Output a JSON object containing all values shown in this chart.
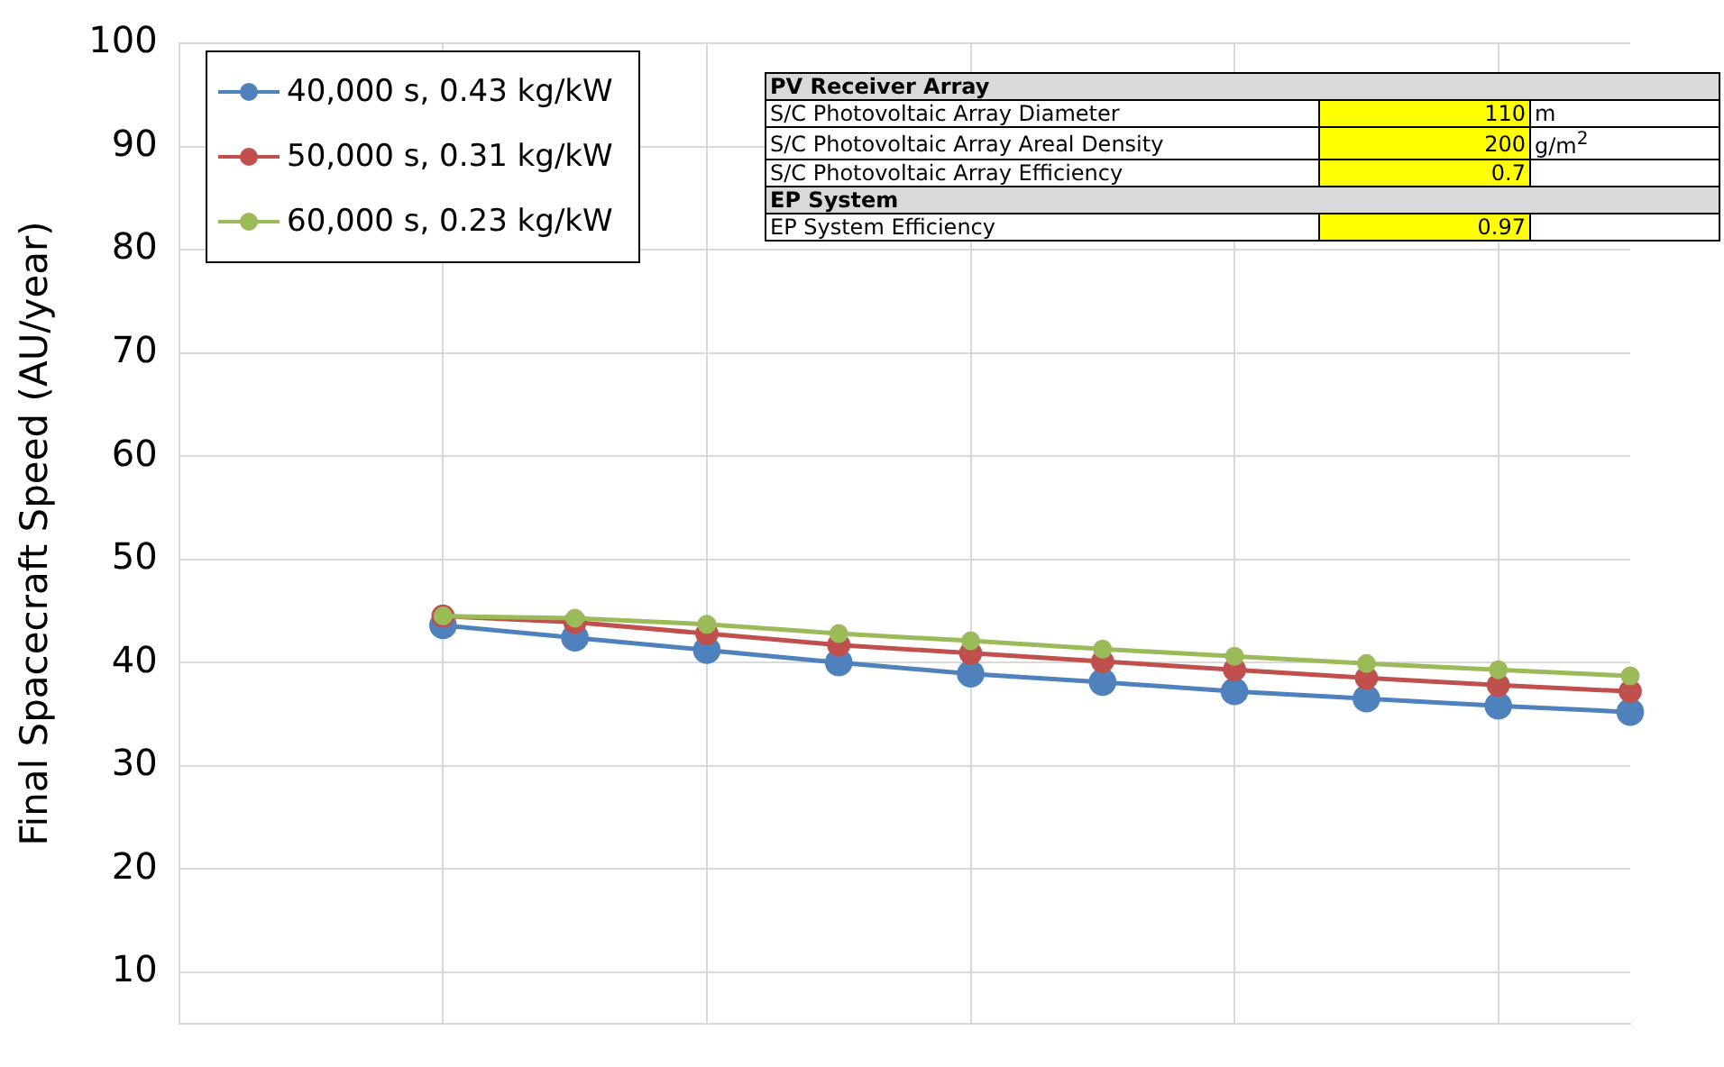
{
  "chart_data": {
    "type": "line",
    "ylabel": "Final Spacecraft Speed (AU/year)",
    "categories": [
      null,
      null,
      null,
      null,
      null,
      null,
      null,
      null,
      null,
      null,
      null,
      null
    ],
    "series": [
      {
        "name": "40,000 s, 0.43 kg/kW",
        "color": "#4f81bd",
        "values": [
          null,
          null,
          43.6,
          42.4,
          41.2,
          40.0,
          38.9,
          38.1,
          37.2,
          36.5,
          35.8,
          35.2
        ]
      },
      {
        "name": "50,000 s, 0.31 kg/kW",
        "color": "#c0504d",
        "values": [
          null,
          null,
          44.5,
          43.9,
          42.8,
          41.7,
          40.9,
          40.1,
          39.3,
          38.5,
          37.8,
          37.2
        ]
      },
      {
        "name": "60,000 s, 0.23 kg/kW",
        "color": "#9bbb59",
        "values": [
          null,
          null,
          44.5,
          44.3,
          43.7,
          42.8,
          42.1,
          41.3,
          40.6,
          39.9,
          39.3,
          38.7
        ]
      }
    ],
    "ylim": [
      5,
      100
    ],
    "yticks": [
      10,
      20,
      30,
      40,
      50,
      60,
      70,
      80,
      90,
      100
    ],
    "grid": true,
    "legend": "top left",
    "marker": "circle",
    "line_style": "solid",
    "tick_labels": "y",
    "annotations": [
      "PV Receiver Array",
      "S/C Photovoltaic Array Diameter",
      "110",
      "m",
      "S/C Photovoltaic Array Areal Density",
      "200",
      "g/m$^{2}$",
      "S/C Photovoltaic Array Efficiency",
      "0.7",
      "EP System",
      "EP System Efficiency",
      "0.97"
    ]
  }
}
